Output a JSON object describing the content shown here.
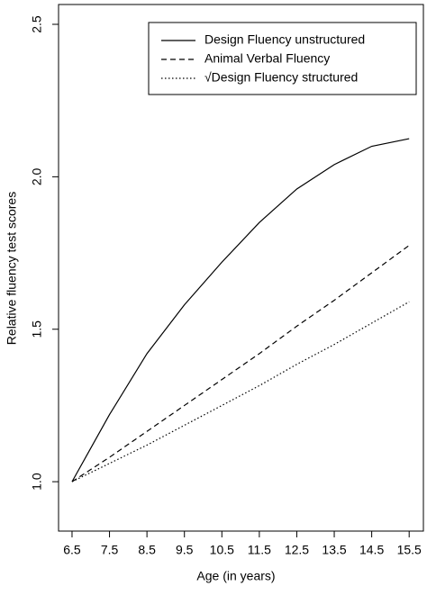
{
  "chart_data": {
    "type": "line",
    "xlabel": "Age (in years)",
    "ylabel": "Relative fluency test scores",
    "x": [
      6.5,
      7.5,
      8.5,
      9.5,
      10.5,
      11.5,
      12.5,
      13.5,
      14.5,
      15.5
    ],
    "series": [
      {
        "name": "Design Fluency unstructured",
        "color": "#000000",
        "dash": "solid",
        "values": [
          1.0,
          1.22,
          1.42,
          1.58,
          1.72,
          1.85,
          1.96,
          2.04,
          2.1,
          2.125
        ]
      },
      {
        "name": "Animal Verbal Fluency",
        "color": "#000000",
        "dash": "dashed",
        "values": [
          1.0,
          1.08,
          1.165,
          1.25,
          1.335,
          1.42,
          1.51,
          1.595,
          1.685,
          1.775
        ]
      },
      {
        "name": "√Design Fluency structured",
        "color": "#000000",
        "dash": "dotted",
        "values": [
          1.0,
          1.06,
          1.12,
          1.185,
          1.25,
          1.315,
          1.385,
          1.45,
          1.52,
          1.59
        ]
      }
    ],
    "xlim": [
      6.14,
      15.88
    ],
    "ylim": [
      0.838,
      2.565
    ],
    "xticks": [
      6.5,
      7.5,
      8.5,
      9.5,
      10.5,
      11.5,
      12.5,
      13.5,
      14.5,
      15.5
    ],
    "yticks": [
      {
        "value": 1,
        "label": "1.0"
      },
      1.5,
      {
        "value": 2,
        "label": "2.0"
      },
      2.5
    ],
    "legend": "top-right",
    "grid": false
  }
}
